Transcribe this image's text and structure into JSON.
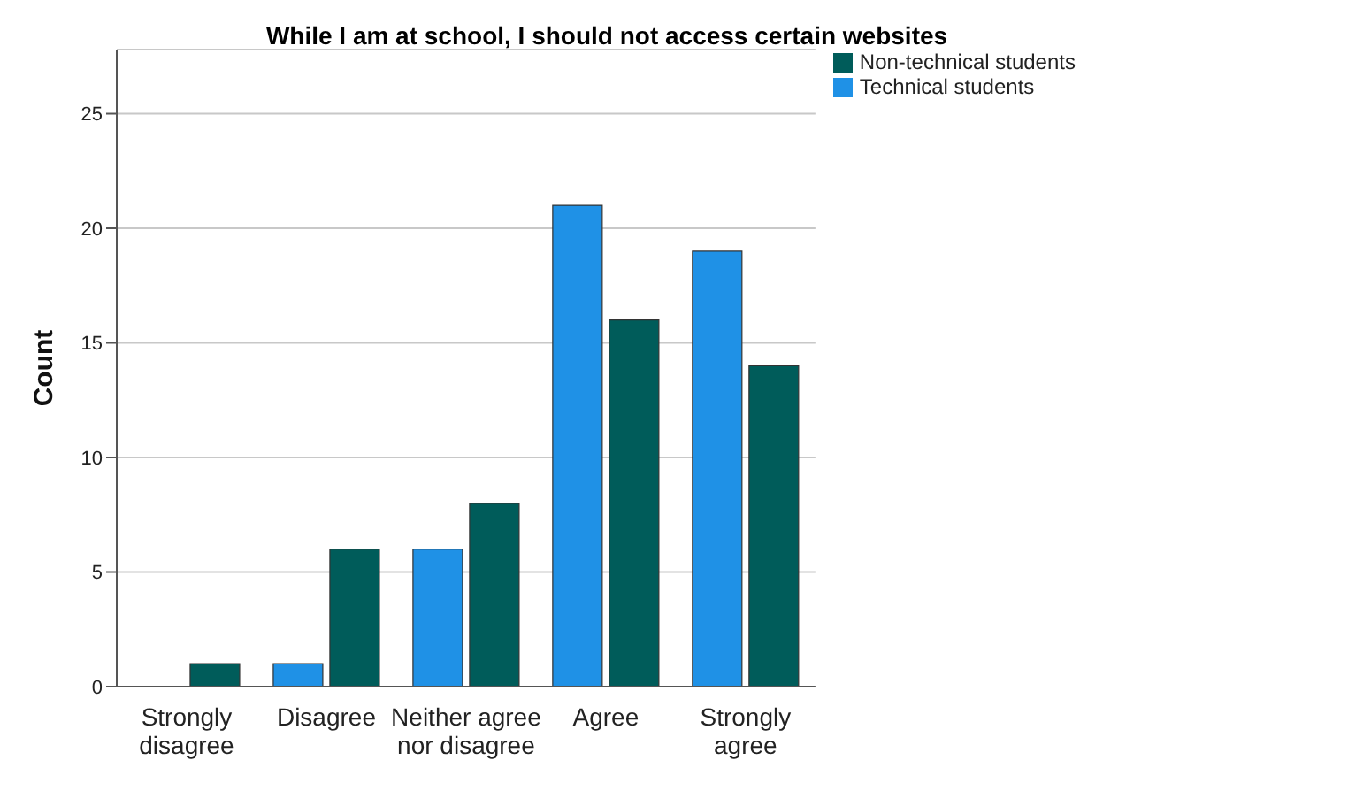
{
  "chart_data": {
    "type": "bar",
    "title": "While I am at school, I should not access certain websites",
    "ylabel": "Count",
    "categories": [
      "Strongly disagree",
      "Disagree",
      "Neither agree nor disagree",
      "Agree",
      "Strongly agree"
    ],
    "series": [
      {
        "name": "Technical students",
        "color": "#1f91e6",
        "values": [
          0,
          1,
          6,
          21,
          19
        ]
      },
      {
        "name": "Non-technical students",
        "color": "#005c5a",
        "values": [
          1,
          6,
          8,
          16,
          14
        ]
      }
    ],
    "ylim": [
      0,
      27.8
    ],
    "yticks": [
      0,
      5,
      10,
      15,
      20,
      25
    ],
    "grid": "y",
    "legend": "top right"
  }
}
